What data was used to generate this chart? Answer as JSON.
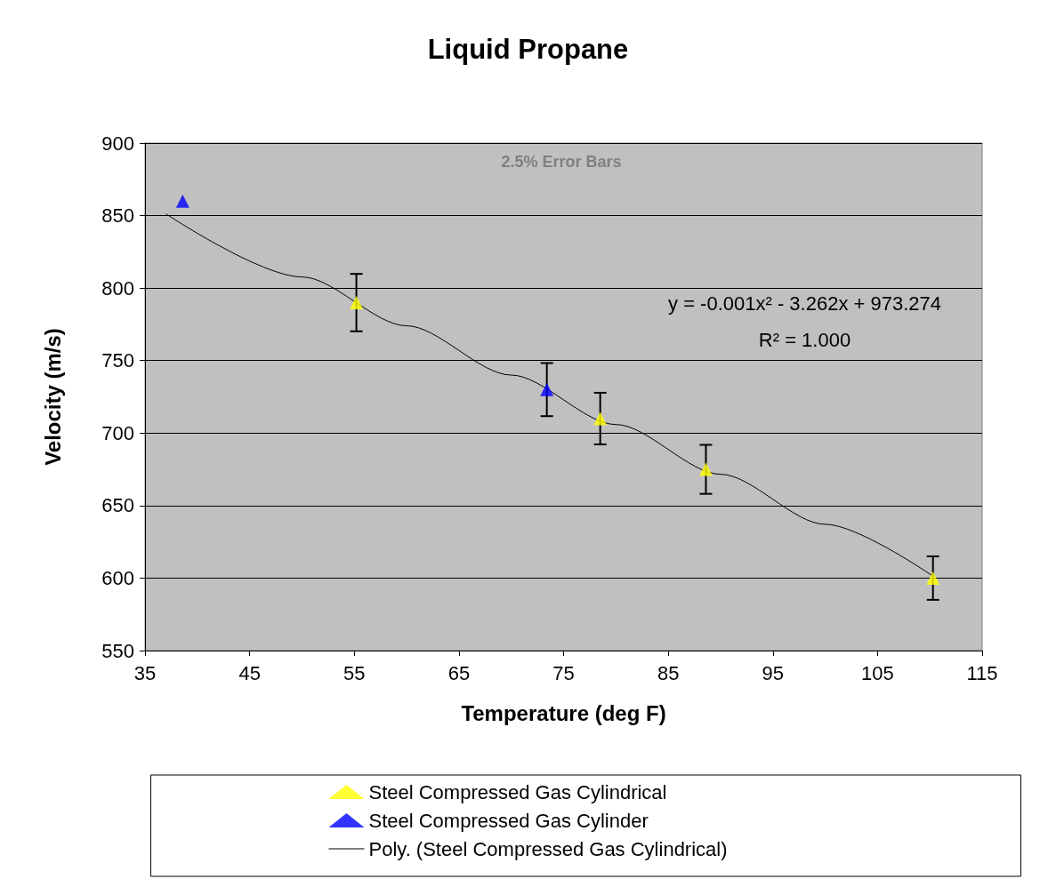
{
  "chart_data": {
    "type": "scatter",
    "title": "Liquid Propane",
    "xlabel": "Temperature (deg F)",
    "ylabel": "Velocity (m/s)",
    "xlim": [
      35,
      115
    ],
    "xticks": [
      35,
      45,
      55,
      65,
      75,
      85,
      95,
      105,
      115
    ],
    "ylim": [
      550,
      900
    ],
    "yticks": [
      550,
      600,
      650,
      700,
      750,
      800,
      850,
      900
    ],
    "grid": "y",
    "legend": "bottom",
    "marker": "triangle",
    "annotations": [
      "2.5% Error Bars",
      "y = -0.001x² - 3.262x + 973.274",
      "R² = 1.000"
    ],
    "series": [
      {
        "name": "Steel Compressed Gas Cylindrical",
        "color": "#ffff00",
        "x": [
          55.2,
          78.5,
          88.6,
          110.3
        ],
        "values": [
          790,
          710,
          675,
          600
        ],
        "errors": [
          19.8,
          17.8,
          16.9,
          15
        ]
      },
      {
        "name": "Steel Compressed Gas Cylinder",
        "color": "#0000ff",
        "x": [
          38.6,
          73.4
        ],
        "values": [
          860,
          730
        ],
        "errors": [
          null,
          18.3
        ]
      },
      {
        "name": "Poly. (Steel Compressed Gas Cylindrical)",
        "type": "line",
        "color": "#000000",
        "marker": "none",
        "x": [
          37,
          50,
          60,
          70,
          80,
          90,
          100,
          110.3
        ],
        "values": [
          851.2,
          807.7,
          774.0,
          740.0,
          705.9,
          671.6,
          637.1,
          601.3
        ]
      }
    ]
  }
}
